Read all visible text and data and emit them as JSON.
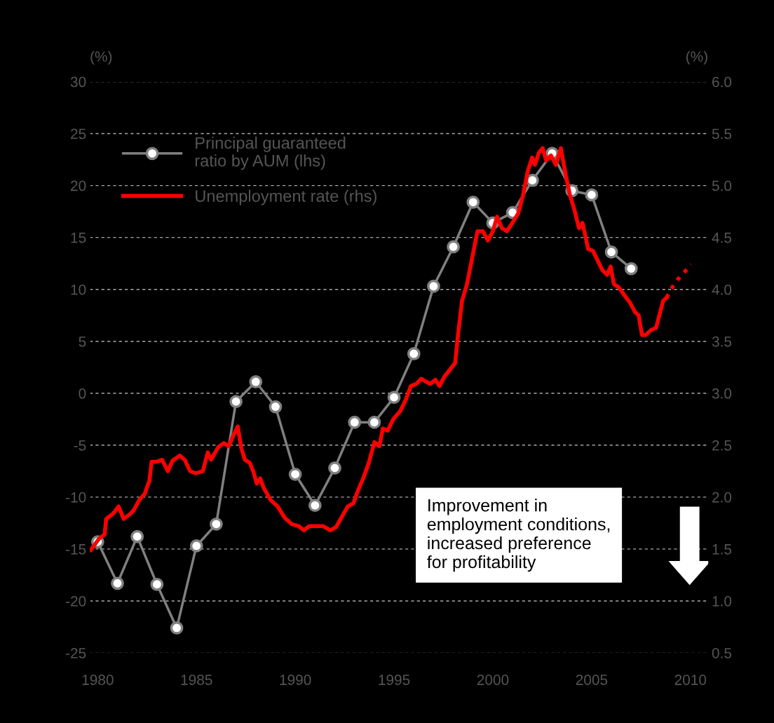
{
  "chart_data": {
    "type": "line",
    "ylabel": "(%)",
    "y2label": "(%)",
    "x": [
      1980,
      1981,
      1982,
      1983,
      1984,
      1985,
      1986,
      1987,
      1988,
      1989,
      1990,
      1991,
      1992,
      1993,
      1994,
      1995,
      1996,
      1997,
      1998,
      1999,
      2000,
      2001,
      2002,
      2003,
      2004,
      2005,
      2006,
      2007
    ],
    "series": [
      {
        "name": "Principal guaranteed\nratio by AUM (lhs)",
        "color": "#808080",
        "marker": "circle",
        "axis": "y",
        "values": [
          -14.3,
          -18.3,
          -13.8,
          -18.4,
          -22.6,
          -14.7,
          -12.6,
          -0.8,
          1.1,
          -1.3,
          -7.8,
          -10.8,
          -7.2,
          -2.8,
          -2.8,
          -0.4,
          3.8,
          10.3,
          14.1,
          18.4,
          16.4,
          17.4,
          20.5,
          23.1,
          19.5,
          19.1,
          13.6,
          12.0
        ]
      },
      {
        "name": "Unemployment rate (rhs)",
        "color": "#ff0000",
        "marker": "none",
        "axis": "y2",
        "line_style": "solid",
        "x": [
          1979.65,
          1980.07,
          1980.35,
          1980.43,
          1980.78,
          1981.06,
          1981.31,
          1981.67,
          1981.84,
          1982.13,
          1982.38,
          1982.62,
          1982.73,
          1982.98,
          1983.26,
          1983.55,
          1983.79,
          1984.15,
          1984.4,
          1984.68,
          1984.96,
          1985.32,
          1985.57,
          1985.74,
          1986.1,
          1986.38,
          1986.63,
          1986.88,
          1987.09,
          1987.27,
          1987.45,
          1987.7,
          1987.87,
          1988.05,
          1988.23,
          1988.4,
          1988.76,
          1989.11,
          1989.47,
          1989.82,
          1990.18,
          1990.43,
          1990.71,
          1991.06,
          1991.42,
          1991.77,
          1992.06,
          1992.3,
          1992.66,
          1992.94,
          1993.19,
          1993.48,
          1993.72,
          1994.01,
          1994.26,
          1994.43,
          1994.68,
          1994.96,
          1995.32,
          1995.6,
          1995.85,
          1996.13,
          1996.38,
          1996.63,
          1996.84,
          1997.09,
          1997.3,
          1997.55,
          1997.8,
          1998.09,
          1998.23,
          1998.44,
          1998.69,
          1998.94,
          1999.22,
          1999.5,
          1999.75,
          2000.0,
          2000.21,
          2000.46,
          2000.71,
          2000.99,
          2001.28,
          2001.52,
          2001.77,
          2001.99,
          2002.13,
          2002.34,
          2002.52,
          2002.7,
          2002.94,
          2003.19,
          2003.44,
          2003.69,
          2003.9,
          2004.11,
          2004.36,
          2004.54,
          2004.82,
          2005.07,
          2005.25,
          2005.53,
          2005.78,
          2005.96,
          2006.13,
          2006.38,
          2006.67,
          2006.95,
          2007.2,
          2007.38,
          2007.55,
          2007.73,
          2008.01,
          2008.26,
          2008.44,
          2008.62,
          2008.79
        ],
        "values": [
          1.49,
          1.6,
          1.64,
          1.79,
          1.84,
          1.91,
          1.79,
          1.84,
          1.88,
          1.98,
          2.03,
          2.16,
          2.34,
          2.34,
          2.36,
          2.25,
          2.35,
          2.4,
          2.36,
          2.25,
          2.23,
          2.25,
          2.43,
          2.36,
          2.48,
          2.52,
          2.49,
          2.6,
          2.68,
          2.47,
          2.36,
          2.33,
          2.25,
          2.13,
          2.18,
          2.09,
          1.97,
          1.91,
          1.8,
          1.74,
          1.72,
          1.68,
          1.72,
          1.72,
          1.72,
          1.68,
          1.71,
          1.79,
          1.91,
          1.94,
          2.07,
          2.2,
          2.33,
          2.53,
          2.49,
          2.66,
          2.64,
          2.75,
          2.83,
          2.94,
          3.07,
          3.09,
          3.14,
          3.11,
          3.09,
          3.13,
          3.07,
          3.16,
          3.22,
          3.29,
          3.55,
          3.89,
          4.05,
          4.29,
          4.56,
          4.56,
          4.47,
          4.56,
          4.7,
          4.59,
          4.56,
          4.64,
          4.73,
          4.9,
          5.14,
          5.27,
          5.2,
          5.32,
          5.36,
          5.24,
          5.29,
          5.2,
          5.36,
          5.1,
          4.91,
          4.78,
          4.59,
          4.64,
          4.39,
          4.37,
          4.3,
          4.19,
          4.14,
          4.22,
          4.05,
          4.02,
          3.94,
          3.87,
          3.78,
          3.75,
          3.56,
          3.56,
          3.61,
          3.63,
          3.76,
          3.89,
          3.92
        ]
      },
      {
        "color": "#ff0000",
        "marker": "none",
        "axis": "y2",
        "line_style": "dotted",
        "x": [
          2008.79,
          2009.08,
          2009.33,
          2009.57,
          2010.04
        ],
        "values": [
          3.92,
          4.02,
          4.09,
          4.14,
          4.24
        ]
      }
    ],
    "xlim": [
      1979.6,
      2010.9
    ],
    "xticks": [
      1980,
      1985,
      1990,
      1995,
      2000,
      2005,
      2010
    ],
    "ylim": [
      -25,
      30
    ],
    "yticks": [
      -25,
      -20,
      -15,
      -10,
      -5,
      0,
      5,
      10,
      15,
      20,
      25,
      30
    ],
    "y2lim": [
      0.5,
      6.0
    ],
    "y2ticks": [
      0.5,
      {
        "value": 1,
        "label": "1.0"
      },
      1.5,
      {
        "value": 2,
        "label": "2.0"
      },
      2.5,
      {
        "value": 3,
        "label": "3.0"
      },
      3.5,
      {
        "value": 4,
        "label": "4.0"
      },
      4.5,
      {
        "value": 5,
        "label": "5.0"
      },
      5.5,
      {
        "value": 6,
        "label": "6.0"
      }
    ],
    "grid": "y",
    "legend": "top left",
    "annotations": [
      "Improvement in\nemployment conditions,\nincreased preference\nfor profitability"
    ]
  }
}
